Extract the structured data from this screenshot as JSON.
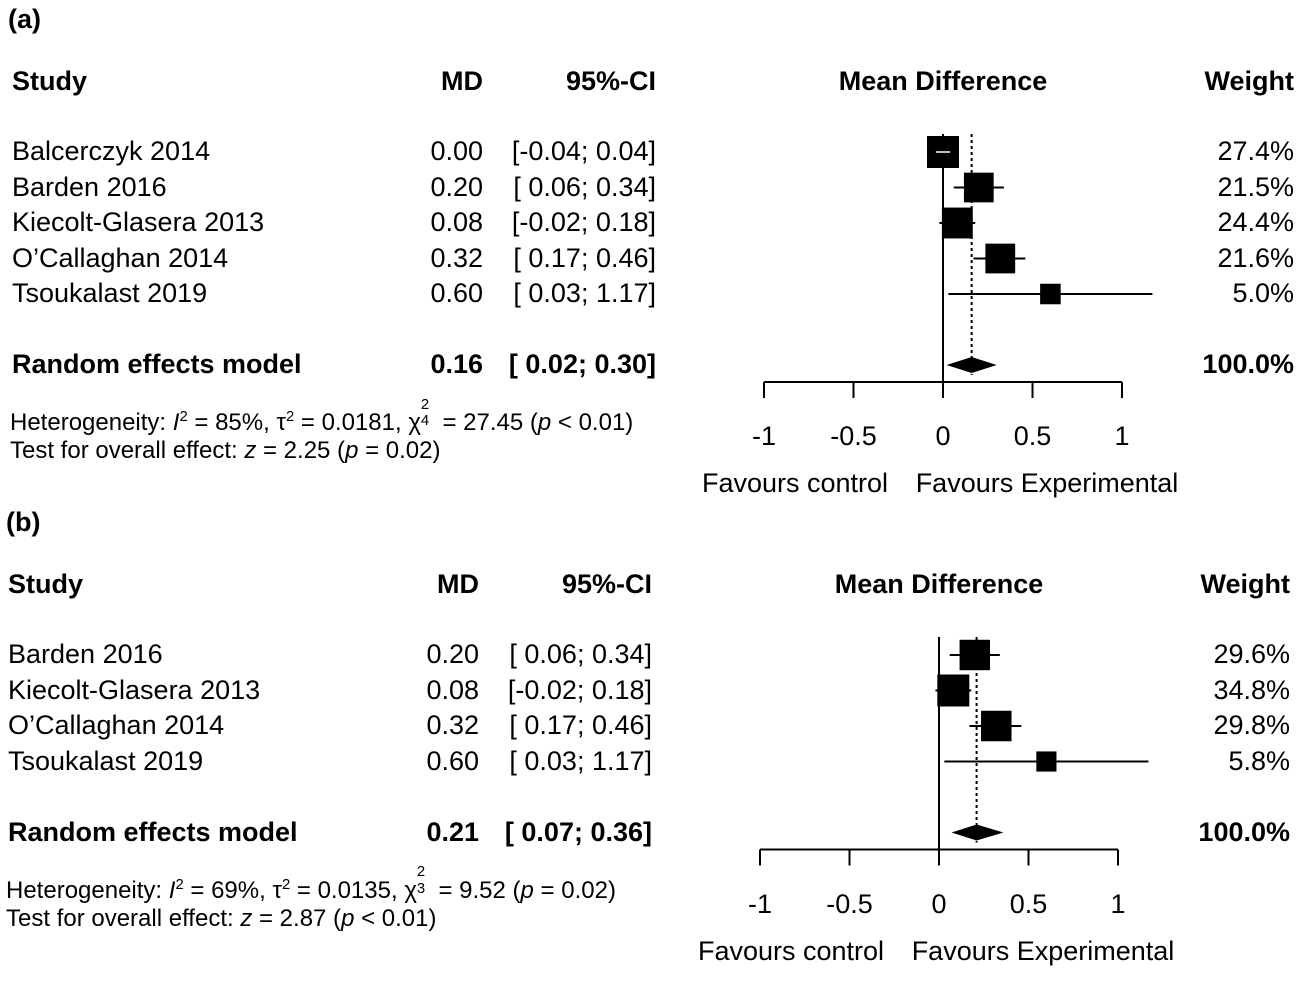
{
  "chart_data": [
    {
      "type": "forest",
      "panel_label": "(a)",
      "headers": {
        "study": "Study",
        "md": "MD",
        "ci": "95%-CI",
        "plot": "Mean Difference",
        "weight": "Weight"
      },
      "studies": [
        {
          "name": "Balcerczyk 2014",
          "md": 0.0,
          "lo": -0.04,
          "hi": 0.04,
          "md_text": "0.00",
          "ci_text": "[-0.04; 0.04]",
          "weight": 27.4,
          "weight_text": "27.4%"
        },
        {
          "name": "Barden 2016",
          "md": 0.2,
          "lo": 0.06,
          "hi": 0.34,
          "md_text": "0.20",
          "ci_text": "[ 0.06; 0.34]",
          "weight": 21.5,
          "weight_text": "21.5%"
        },
        {
          "name": "Kiecolt-Glasera 2013",
          "md": 0.08,
          "lo": -0.02,
          "hi": 0.18,
          "md_text": "0.08",
          "ci_text": "[-0.02; 0.18]",
          "weight": 24.4,
          "weight_text": "24.4%"
        },
        {
          "name": "O’Callaghan 2014",
          "md": 0.32,
          "lo": 0.17,
          "hi": 0.46,
          "md_text": "0.32",
          "ci_text": "[ 0.17; 0.46]",
          "weight": 21.6,
          "weight_text": "21.6%"
        },
        {
          "name": "Tsoukalast 2019",
          "md": 0.6,
          "lo": 0.03,
          "hi": 1.17,
          "md_text": "0.60",
          "ci_text": "[ 0.03; 1.17]",
          "weight": 5.0,
          "weight_text": "5.0%"
        }
      ],
      "pooled": {
        "name": "Random effects model",
        "md": 0.16,
        "lo": 0.02,
        "hi": 0.3,
        "md_text": "0.16",
        "ci_text": "[ 0.02; 0.30]",
        "weight_text": "100.0%"
      },
      "heterogeneity": {
        "prefix": "Heterogeneity: ",
        "I": "I",
        "i2_value": " = 85%, ",
        "tau": "τ",
        "tau2_value": " = 0.0181, ",
        "chi": "χ",
        "df": "4",
        "chi2_value": " = 27.45 (",
        "p": "p",
        "p_value": " < 0.01)"
      },
      "overall": {
        "prefix": "Test for overall effect: ",
        "z": "z",
        "z_value": " = 2.25 (",
        "p": "p",
        "p_value": " = 0.02)"
      },
      "x_axis": {
        "ticks": [
          -1,
          -0.5,
          0,
          0.5,
          1
        ],
        "tick_labels": [
          "-1",
          "-0.5",
          "0",
          "0.5",
          "1"
        ],
        "xlim": [
          -1,
          1
        ]
      },
      "favours": {
        "left": "Favours control",
        "right": "Favours Experimental"
      }
    },
    {
      "type": "forest",
      "panel_label": "(b)",
      "headers": {
        "study": "Study",
        "md": "MD",
        "ci": "95%-CI",
        "plot": "Mean Difference",
        "weight": "Weight"
      },
      "studies": [
        {
          "name": "Barden 2016",
          "md": 0.2,
          "lo": 0.06,
          "hi": 0.34,
          "md_text": "0.20",
          "ci_text": "[ 0.06; 0.34]",
          "weight": 29.6,
          "weight_text": "29.6%"
        },
        {
          "name": "Kiecolt-Glasera 2013",
          "md": 0.08,
          "lo": -0.02,
          "hi": 0.18,
          "md_text": "0.08",
          "ci_text": "[-0.02; 0.18]",
          "weight": 34.8,
          "weight_text": "34.8%"
        },
        {
          "name": "O’Callaghan 2014",
          "md": 0.32,
          "lo": 0.17,
          "hi": 0.46,
          "md_text": "0.32",
          "ci_text": "[ 0.17; 0.46]",
          "weight": 29.8,
          "weight_text": "29.8%"
        },
        {
          "name": "Tsoukalast 2019",
          "md": 0.6,
          "lo": 0.03,
          "hi": 1.17,
          "md_text": "0.60",
          "ci_text": "[ 0.03; 1.17]",
          "weight": 5.8,
          "weight_text": "5.8%"
        }
      ],
      "pooled": {
        "name": "Random effects model",
        "md": 0.21,
        "lo": 0.07,
        "hi": 0.36,
        "md_text": "0.21",
        "ci_text": "[ 0.07; 0.36]",
        "weight_text": "100.0%"
      },
      "heterogeneity": {
        "prefix": "Heterogeneity: ",
        "I": "I",
        "i2_value": " = 69%, ",
        "tau": "τ",
        "tau2_value": " = 0.0135, ",
        "chi": "χ",
        "df": "3",
        "chi2_value": " = 9.52 (",
        "p": "p",
        "p_value": " = 0.02)"
      },
      "overall": {
        "prefix": "Test for overall effect: ",
        "z": "z",
        "z_value": " = 2.87 (",
        "p": "p",
        "p_value": " < 0.01)"
      },
      "x_axis": {
        "ticks": [
          -1,
          -0.5,
          0,
          0.5,
          1
        ],
        "tick_labels": [
          "-1",
          "-0.5",
          "0",
          "0.5",
          "1"
        ],
        "xlim": [
          -1,
          1
        ]
      },
      "favours": {
        "left": "Favours control",
        "right": "Favours Experimental"
      }
    }
  ]
}
